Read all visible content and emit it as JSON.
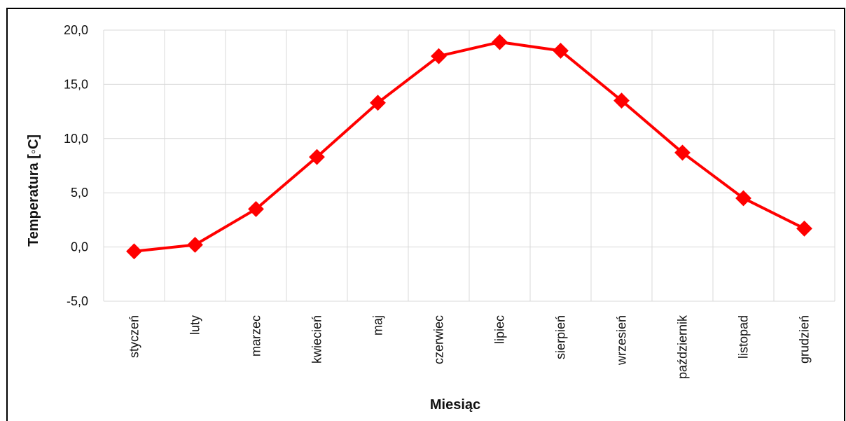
{
  "chart_data": {
    "type": "line",
    "title": "",
    "xlabel": "Miesiąc",
    "ylabel": "Temperatura [◦C]",
    "categories": [
      "styczeń",
      "luty",
      "marzec",
      "kwiecień",
      "maj",
      "czerwiec",
      "lipiec",
      "sierpień",
      "wrzesień",
      "październik",
      "listopad",
      "grudzień"
    ],
    "series": [
      {
        "values": [
          -0.4,
          0.2,
          3.5,
          8.3,
          13.3,
          17.6,
          18.9,
          18.1,
          13.5,
          8.7,
          4.5,
          1.7
        ]
      }
    ],
    "ylim": [
      -5,
      20
    ],
    "yticks": [
      20,
      15,
      10,
      5,
      0,
      -5
    ],
    "ytick_labels": [
      "20,0",
      "15,0",
      "10,0",
      "5,0",
      "0,0",
      "-5,0"
    ],
    "grid": true,
    "legend": "none",
    "line_color": "#ff0000",
    "marker": "diamond",
    "grid_color": "#d9d9d9"
  }
}
